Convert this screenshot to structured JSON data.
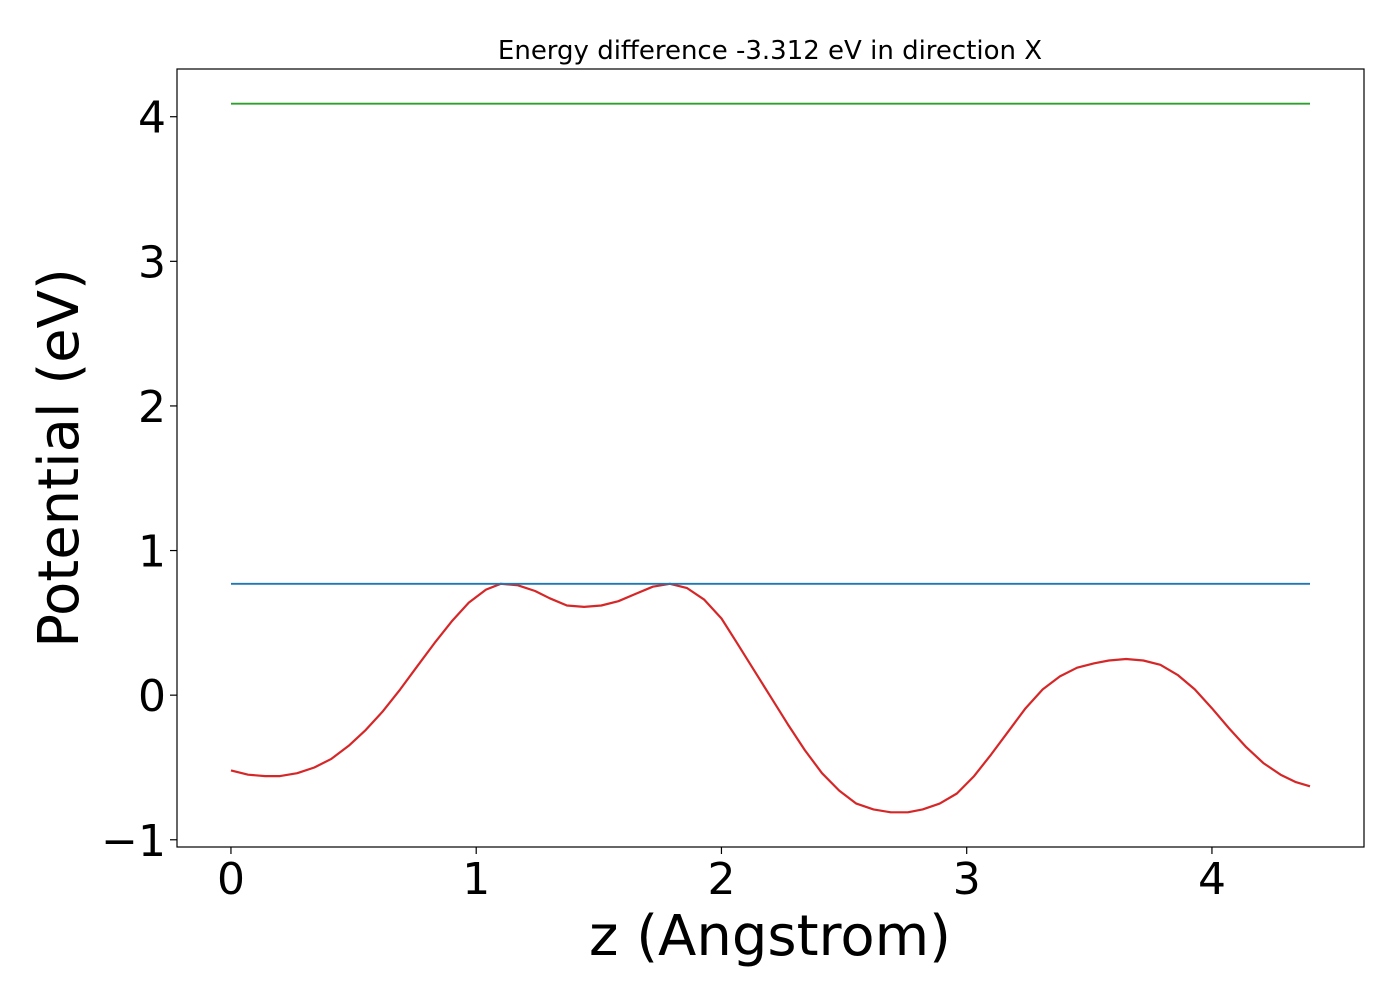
{
  "chart_data": {
    "type": "line",
    "title": "Energy difference -3.312 eV in direction X",
    "xlabel": "z (Angstrom)",
    "ylabel": "Potential (eV)",
    "xlim": [
      -0.22,
      4.62
    ],
    "ylim": [
      -1.05,
      4.33
    ],
    "x_ticks": [
      0,
      1,
      2,
      3,
      4
    ],
    "x_tick_labels": [
      "0",
      "1",
      "2",
      "3",
      "4"
    ],
    "y_ticks": [
      -1,
      0,
      1,
      2,
      3,
      4
    ],
    "y_tick_labels": [
      "−1",
      "0",
      "1",
      "2",
      "3",
      "4"
    ],
    "grid": false,
    "series": [
      {
        "color": "#d62728",
        "x": [
          0.0,
          0.07,
          0.14,
          0.2,
          0.27,
          0.34,
          0.41,
          0.48,
          0.55,
          0.62,
          0.69,
          0.76,
          0.83,
          0.9,
          0.97,
          1.04,
          1.1,
          1.17,
          1.24,
          1.3,
          1.37,
          1.44,
          1.51,
          1.58,
          1.65,
          1.72,
          1.79,
          1.86,
          1.93,
          2.0,
          2.06,
          2.13,
          2.2,
          2.27,
          2.34,
          2.41,
          2.48,
          2.55,
          2.62,
          2.69,
          2.76,
          2.82,
          2.89,
          2.96,
          3.03,
          3.1,
          3.17,
          3.24,
          3.31,
          3.38,
          3.45,
          3.52,
          3.58,
          3.65,
          3.72,
          3.79,
          3.86,
          3.93,
          4.0,
          4.07,
          4.14,
          4.21,
          4.28,
          4.34,
          4.4
        ],
        "y": [
          -0.52,
          -0.55,
          -0.56,
          -0.56,
          -0.54,
          -0.5,
          -0.44,
          -0.35,
          -0.24,
          -0.11,
          0.04,
          0.2,
          0.36,
          0.51,
          0.64,
          0.73,
          0.77,
          0.76,
          0.72,
          0.67,
          0.62,
          0.61,
          0.62,
          0.65,
          0.7,
          0.75,
          0.77,
          0.74,
          0.66,
          0.53,
          0.37,
          0.18,
          -0.01,
          -0.2,
          -0.38,
          -0.54,
          -0.66,
          -0.75,
          -0.79,
          -0.81,
          -0.81,
          -0.79,
          -0.75,
          -0.68,
          -0.56,
          -0.41,
          -0.25,
          -0.09,
          0.04,
          0.13,
          0.19,
          0.22,
          0.24,
          0.25,
          0.24,
          0.21,
          0.14,
          0.04,
          -0.09,
          -0.23,
          -0.36,
          -0.47,
          -0.55,
          -0.6,
          -0.63
        ]
      },
      {
        "color": "#1f77b4",
        "x": [
          0.0,
          4.4
        ],
        "y": [
          0.77,
          0.77
        ]
      },
      {
        "color": "#2ca02c",
        "x": [
          0.0,
          4.4
        ],
        "y": [
          4.09,
          4.09
        ]
      }
    ]
  }
}
